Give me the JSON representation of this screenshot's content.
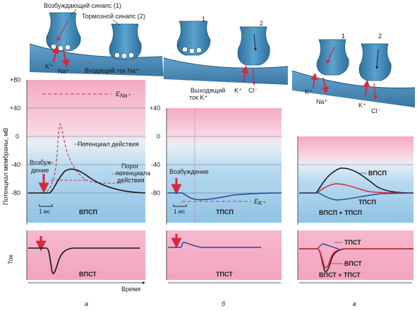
{
  "header": {
    "excitatory_synapse": "Возбуждающий синапс (1)",
    "inhibitory_synapse": "Тормозной синапс (2)",
    "inward_current": "Входящий ток Na⁺",
    "outward_current_line1": "Выходящий",
    "outward_current_line2": "ток K⁺"
  },
  "ions": {
    "k": "K⁺",
    "na": "Na⁺",
    "cl": "Cl⁻"
  },
  "synapse_numbers": {
    "b1": "1",
    "b2": "2",
    "c1": "1",
    "c2": "2"
  },
  "axis": {
    "ylabel": "Потенциал мембраны, мВ",
    "ticks": [
      "+80",
      "+40",
      "0",
      "-40",
      "-80"
    ],
    "ticks_b": [
      "+40",
      "0",
      "-40",
      "-80"
    ],
    "current_label": "Ток",
    "time_label": "Время"
  },
  "panel_a": {
    "e_na": "E",
    "e_na_sub": "Na⁺",
    "action_potential": "Потенциал действия",
    "threshold_line1": "Порог",
    "threshold_line2": "потенциала",
    "threshold_line3": "действия",
    "excitation_line1": "Возбуж-",
    "excitation_line2": "дение",
    "scale": "1 мс",
    "psp_label": "ВПСП",
    "current_label": "ВПСТ",
    "letter": "а"
  },
  "panel_b": {
    "excitation": "Возбуждение",
    "e_k": "E",
    "e_k_sub": "K⁺",
    "scale": "1 мс",
    "psp_label": "ТПСП",
    "current_label": "ТПСТ",
    "letter": "б"
  },
  "panel_c": {
    "epsp": "ВПСП",
    "ipsp": "ТПСП",
    "sum_label": "ВПСП + ТПСП",
    "ipsc": "ТПСТ",
    "epsc": "ВПСТ",
    "sum_current": "ВПСТ + ТПСТ",
    "letter": "в"
  },
  "colors": {
    "pink": "#f4aac4",
    "blue": "#8fc3e4",
    "membrane": "#2f7fb0",
    "terminal": "#3d87b4",
    "trace_black": "#141414",
    "trace_red": "#d8283c",
    "trace_blue": "#2a4a9a",
    "dashed_red": "#c8325a"
  }
}
